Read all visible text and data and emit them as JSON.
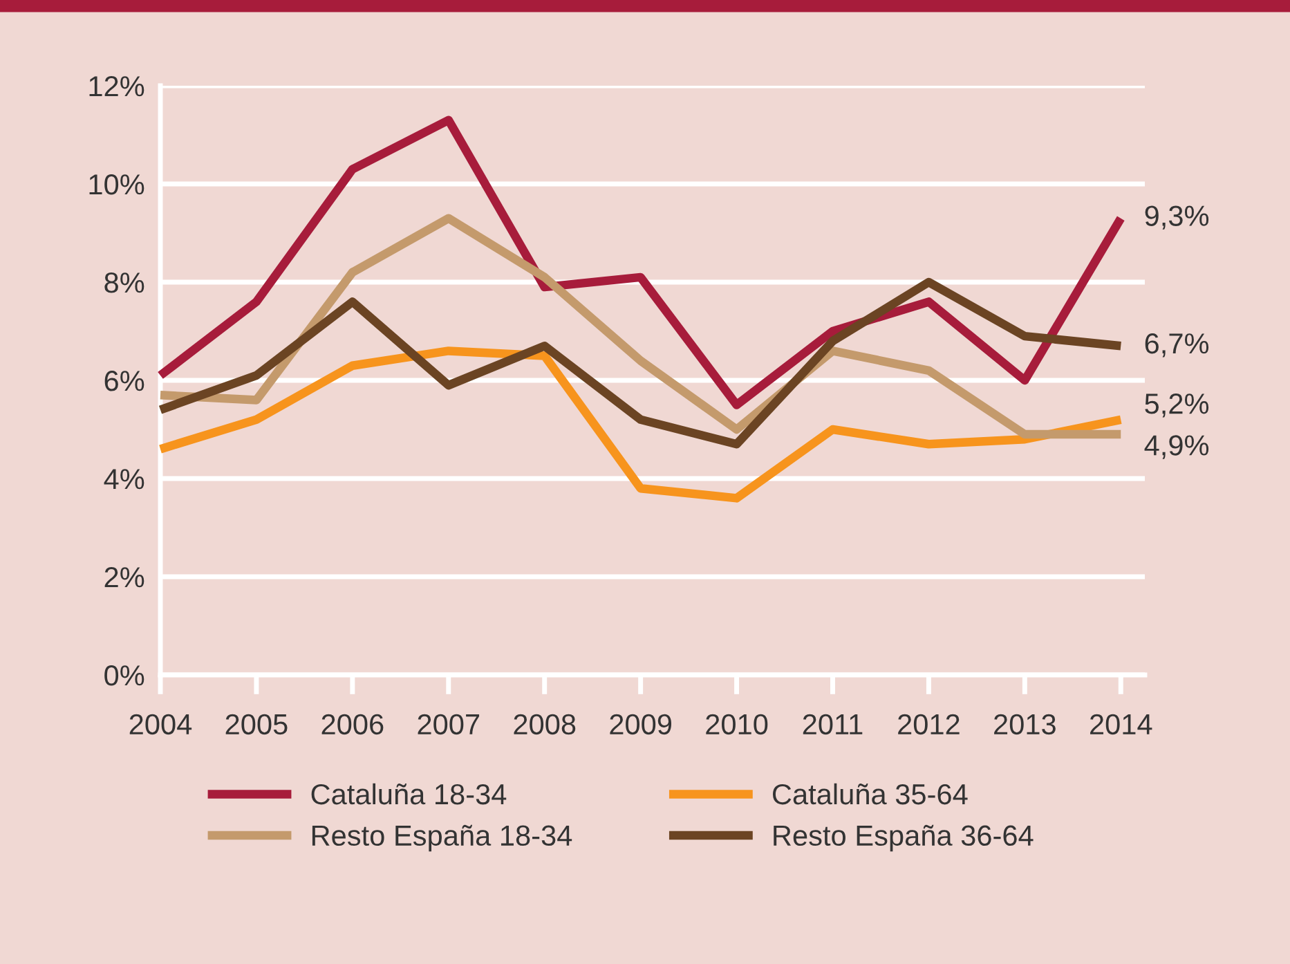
{
  "chart_data": {
    "type": "line",
    "x": [
      2004,
      2005,
      2006,
      2007,
      2008,
      2009,
      2010,
      2011,
      2012,
      2013,
      2014
    ],
    "series": [
      {
        "name": "Cataluña 18-34",
        "color": "#a71c3b",
        "values": [
          6.1,
          7.6,
          10.3,
          11.3,
          7.9,
          8.1,
          5.5,
          7.0,
          7.6,
          6.0,
          9.3
        ],
        "value_labels": [
          null,
          null,
          null,
          null,
          null,
          null,
          null,
          null,
          null,
          null,
          "9,3%"
        ]
      },
      {
        "name": "Cataluña 35-64",
        "color": "#f7941d",
        "values": [
          4.6,
          5.2,
          6.3,
          6.6,
          6.5,
          3.8,
          3.6,
          5.0,
          4.7,
          4.8,
          5.2
        ],
        "value_labels": [
          null,
          null,
          null,
          null,
          null,
          null,
          null,
          null,
          null,
          null,
          "5,2%"
        ]
      },
      {
        "name": "Resto España 18-34",
        "color": "#c49a6c",
        "values": [
          5.7,
          5.6,
          8.2,
          9.3,
          8.1,
          6.4,
          5.0,
          6.6,
          6.2,
          4.9,
          4.9
        ],
        "value_labels": [
          null,
          null,
          null,
          null,
          null,
          null,
          null,
          null,
          null,
          null,
          "4,9%"
        ]
      },
      {
        "name": "Resto España 36-64",
        "color": "#6b4423",
        "values": [
          5.4,
          6.1,
          7.6,
          5.9,
          6.7,
          5.2,
          4.7,
          6.8,
          8.0,
          6.9,
          6.7
        ],
        "value_labels": [
          null,
          null,
          null,
          null,
          null,
          null,
          null,
          null,
          null,
          null,
          "6,7%"
        ]
      }
    ],
    "xlim": [
      2004,
      2014.25
    ],
    "xticks": [
      2004,
      2005,
      2006,
      2007,
      2008,
      2009,
      2010,
      2011,
      2012,
      2013,
      2014
    ],
    "ylim": [
      0,
      12
    ],
    "yticks": [
      {
        "value": 0,
        "label": "0%"
      },
      {
        "value": 2,
        "label": "2%"
      },
      {
        "value": 4,
        "label": "4%"
      },
      {
        "value": 6,
        "label": "6%"
      },
      {
        "value": 8,
        "label": "8%"
      },
      {
        "value": 10,
        "label": "10%"
      },
      {
        "value": 12,
        "label": "12%"
      }
    ],
    "grid": "y",
    "legend": "bottom",
    "marker": "none",
    "line_style": "solid"
  }
}
